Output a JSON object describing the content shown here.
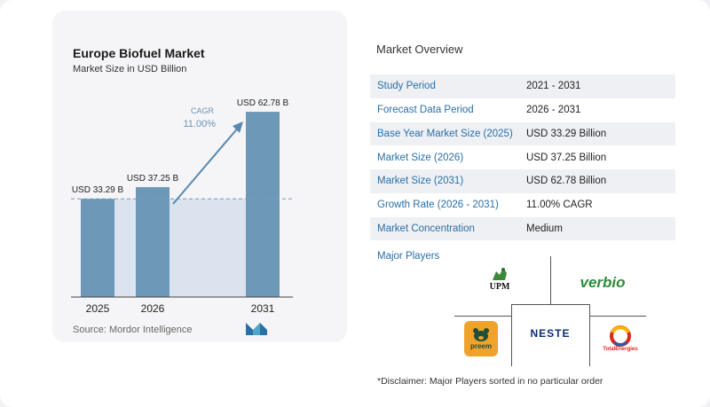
{
  "chart_data": {
    "type": "bar",
    "title": "Europe Biofuel Market",
    "subtitle": "Market Size in USD Billion",
    "categories": [
      "2025",
      "2026",
      "2031"
    ],
    "values": [
      33.29,
      37.25,
      62.78
    ],
    "data_labels": [
      "USD 33.29 B",
      "USD 37.25 B",
      "USD 62.78 B"
    ],
    "cagr_label": "CAGR",
    "cagr_value": "11.00%",
    "ylim": [
      0,
      65
    ],
    "bar_color": "#6e98b8",
    "area_color": "#dbe4ee",
    "source": "Source: Mordor Intelligence"
  },
  "overview": {
    "title": "Market Overview",
    "rows": [
      {
        "key": "Study Period",
        "value": "2021 - 2031"
      },
      {
        "key": "Forecast Data Period",
        "value": "2026 - 2031"
      },
      {
        "key": "Base Year Market Size (2025)",
        "value": "USD 33.29 Billion"
      },
      {
        "key": "Market Size (2026)",
        "value": "USD 37.25 Billion"
      },
      {
        "key": "Market Size (2031)",
        "value": "USD 62.78 Billion"
      },
      {
        "key": "Growth Rate (2026 - 2031)",
        "value": "11.00% CAGR"
      },
      {
        "key": "Market Concentration",
        "value": "Medium"
      }
    ],
    "players_title": "Major Players",
    "players": [
      "UPM",
      "verbio",
      "NESTE",
      "preem",
      "TotalEnergies"
    ],
    "disclaimer": "*Disclaimer: Major Players sorted in no particular order"
  },
  "colors": {
    "accent": "#2a6fa8",
    "bar": "#6e98b8",
    "neste_blue": "#0a2d6e",
    "verbio_green": "#2e8b3a",
    "preem_orange": "#f0a22a",
    "total_red": "#e1261c"
  }
}
